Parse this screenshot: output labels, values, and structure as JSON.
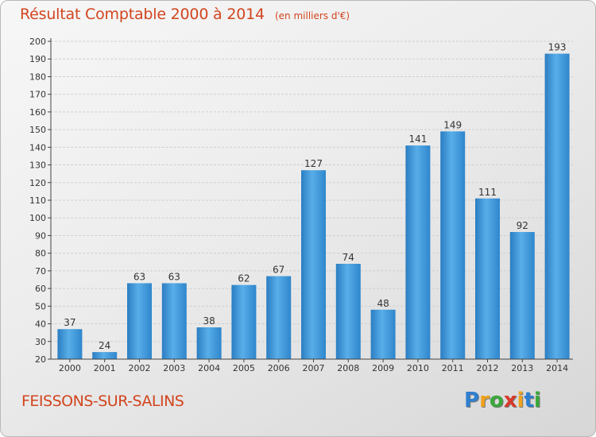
{
  "chart_data": {
    "type": "bar",
    "title": "Résultat Comptable 2000 à 2014",
    "unit_label": "(en milliers d'€)",
    "categories": [
      "2000",
      "2001",
      "2002",
      "2003",
      "2004",
      "2005",
      "2006",
      "2007",
      "2008",
      "2009",
      "2010",
      "2011",
      "2012",
      "2013",
      "2014"
    ],
    "values": [
      37,
      24,
      63,
      63,
      38,
      62,
      67,
      127,
      74,
      48,
      141,
      149,
      111,
      92,
      193
    ],
    "ylim": [
      20,
      200
    ],
    "yticks": [
      20,
      30,
      40,
      50,
      60,
      70,
      80,
      90,
      100,
      110,
      120,
      130,
      140,
      150,
      160,
      170,
      180,
      190,
      200
    ],
    "grid": true,
    "xlabel": "",
    "ylabel": "",
    "bar_color": "#3d93d6"
  },
  "commune": "FEISSONS-SUR-SALINS",
  "logo": {
    "letters": [
      "P",
      "r",
      "o",
      "x",
      "i",
      "t",
      "i"
    ],
    "colors": [
      "#2f7fd0",
      "#f0a21c",
      "#3aa83a",
      "#d83a2a",
      "#f0a21c",
      "#2f7fd0",
      "#3aa83a"
    ]
  },
  "colors": {
    "title": "#d2451e",
    "grid": "#cfcfcf",
    "axis": "#444444"
  }
}
